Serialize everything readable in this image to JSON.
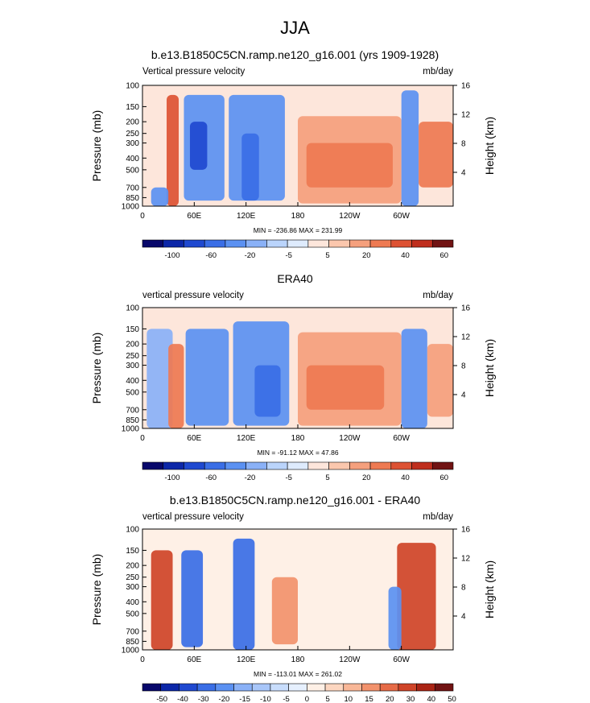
{
  "figure": {
    "title": "JJA"
  },
  "chart_data": [
    {
      "type": "heatmap",
      "title": "b.e13.B1850C5CN.ramp.ne120_g16.001 (yrs 1909-1928)",
      "left_label": "Vertical pressure velocity",
      "right_label": "mb/day",
      "ylabel": "Pressure (mb)",
      "y2label": "Height (km)",
      "x_ticks": [
        "0",
        "60E",
        "120E",
        "180",
        "120W",
        "60W"
      ],
      "x_tick_values": [
        0,
        60,
        120,
        180,
        240,
        300
      ],
      "xlim": [
        0,
        360
      ],
      "y_ticks": [
        "100",
        "150",
        "200",
        "250",
        "300",
        "400",
        "500",
        "700",
        "850",
        "1000"
      ],
      "y_tick_values": [
        100,
        150,
        200,
        250,
        300,
        400,
        500,
        700,
        850,
        1000
      ],
      "ylim": [
        1000,
        100
      ],
      "y_scale": "log",
      "height_ticks": [
        "4",
        "8",
        "12",
        "16"
      ],
      "height_tick_values": [
        4,
        8,
        12,
        16
      ],
      "stats": "MIN = -236.86  MAX = 231.99",
      "colorbar_labels": [
        "-100",
        "-60",
        "-20",
        "-5",
        "5",
        "20",
        "40",
        "60"
      ],
      "colorbar_levels": [
        -100,
        -80,
        -60,
        -40,
        -20,
        -10,
        -5,
        0,
        5,
        10,
        20,
        30,
        40,
        60
      ],
      "colorbar_colors": [
        "#08086b",
        "#0c27a8",
        "#1f49d0",
        "#3a6ee6",
        "#5b91f2",
        "#8ab1f7",
        "#bad4fb",
        "#deebfd",
        "#fde6db",
        "#fbc7ad",
        "#f5a07d",
        "#ee7a52",
        "#dd5233",
        "#bf2e1d",
        "#711313"
      ],
      "features": [
        {
          "x": [
            28,
            42
          ],
          "p": [
            1000,
            120
          ],
          "v": 30
        },
        {
          "x": [
            10,
            30
          ],
          "p": [
            1000,
            700
          ],
          "v": -40
        },
        {
          "x": [
            48,
            95
          ],
          "p": [
            900,
            120
          ],
          "v": -35
        },
        {
          "x": [
            55,
            75
          ],
          "p": [
            500,
            200
          ],
          "v": -80
        },
        {
          "x": [
            100,
            165
          ],
          "p": [
            900,
            120
          ],
          "v": -30
        },
        {
          "x": [
            115,
            135
          ],
          "p": [
            900,
            250
          ],
          "v": -60
        },
        {
          "x": [
            180,
            300
          ],
          "p": [
            950,
            180
          ],
          "v": 18
        },
        {
          "x": [
            190,
            290
          ],
          "p": [
            700,
            300
          ],
          "v": 28
        },
        {
          "x": [
            300,
            320
          ],
          "p": [
            1000,
            110
          ],
          "v": -40
        },
        {
          "x": [
            320,
            360
          ],
          "p": [
            700,
            200
          ],
          "v": 22
        }
      ]
    },
    {
      "type": "heatmap",
      "title": "ERA40",
      "left_label": "vertical pressure velocity",
      "right_label": "mb/day",
      "ylabel": "Pressure (mb)",
      "y2label": "Height (km)",
      "x_ticks": [
        "0",
        "60E",
        "120E",
        "180",
        "120W",
        "60W"
      ],
      "x_tick_values": [
        0,
        60,
        120,
        180,
        240,
        300
      ],
      "xlim": [
        0,
        360
      ],
      "y_ticks": [
        "100",
        "150",
        "200",
        "250",
        "300",
        "400",
        "500",
        "700",
        "850",
        "1000"
      ],
      "y_tick_values": [
        100,
        150,
        200,
        250,
        300,
        400,
        500,
        700,
        850,
        1000
      ],
      "ylim": [
        1000,
        100
      ],
      "y_scale": "log",
      "height_ticks": [
        "4",
        "8",
        "12",
        "16"
      ],
      "height_tick_values": [
        4,
        8,
        12,
        16
      ],
      "stats": "MIN = -91.12  MAX = 47.86",
      "colorbar_labels": [
        "-100",
        "-60",
        "-20",
        "-5",
        "5",
        "20",
        "40",
        "60"
      ],
      "colorbar_levels": [
        -100,
        -80,
        -60,
        -40,
        -20,
        -10,
        -5,
        0,
        5,
        10,
        20,
        30,
        40,
        60
      ],
      "colorbar_colors": [
        "#08086b",
        "#0c27a8",
        "#1f49d0",
        "#3a6ee6",
        "#5b91f2",
        "#8ab1f7",
        "#bad4fb",
        "#deebfd",
        "#fde6db",
        "#fbc7ad",
        "#f5a07d",
        "#ee7a52",
        "#dd5233",
        "#bf2e1d",
        "#711313"
      ],
      "features": [
        {
          "x": [
            5,
            35
          ],
          "p": [
            1000,
            150
          ],
          "v": -20
        },
        {
          "x": [
            30,
            48
          ],
          "p": [
            1000,
            200
          ],
          "v": 25
        },
        {
          "x": [
            50,
            100
          ],
          "p": [
            950,
            150
          ],
          "v": -22
        },
        {
          "x": [
            105,
            170
          ],
          "p": [
            950,
            130
          ],
          "v": -28
        },
        {
          "x": [
            130,
            160
          ],
          "p": [
            800,
            300
          ],
          "v": -45
        },
        {
          "x": [
            180,
            300
          ],
          "p": [
            950,
            160
          ],
          "v": 15
        },
        {
          "x": [
            190,
            280
          ],
          "p": [
            700,
            300
          ],
          "v": 22
        },
        {
          "x": [
            300,
            330
          ],
          "p": [
            1000,
            150
          ],
          "v": -25
        },
        {
          "x": [
            330,
            360
          ],
          "p": [
            800,
            200
          ],
          "v": 12
        }
      ]
    },
    {
      "type": "heatmap",
      "title": "b.e13.B1850C5CN.ramp.ne120_g16.001 - ERA40",
      "left_label": "vertical pressure velocity",
      "right_label": "mb/day",
      "ylabel": "Pressure (mb)",
      "y2label": "Height (km)",
      "x_ticks": [
        "0",
        "60E",
        "120E",
        "180",
        "120W",
        "60W"
      ],
      "x_tick_values": [
        0,
        60,
        120,
        180,
        240,
        300
      ],
      "xlim": [
        0,
        360
      ],
      "y_ticks": [
        "100",
        "150",
        "200",
        "250",
        "300",
        "400",
        "500",
        "700",
        "850",
        "1000"
      ],
      "y_tick_values": [
        100,
        150,
        200,
        250,
        300,
        400,
        500,
        700,
        850,
        1000
      ],
      "ylim": [
        1000,
        100
      ],
      "y_scale": "log",
      "height_ticks": [
        "4",
        "8",
        "12",
        "16"
      ],
      "height_tick_values": [
        4,
        8,
        12,
        16
      ],
      "stats": "MIN = -113.01  MAX = 261.02",
      "colorbar_labels": [
        "-50",
        "-40",
        "-30",
        "-20",
        "-15",
        "-10",
        "-5",
        "0",
        "5",
        "10",
        "15",
        "20",
        "30",
        "40",
        "50"
      ],
      "colorbar_levels": [
        -60,
        -50,
        -40,
        -30,
        -20,
        -15,
        -10,
        -5,
        0,
        5,
        10,
        15,
        20,
        30,
        40,
        50,
        60
      ],
      "colorbar_colors": [
        "#08086b",
        "#0c27a8",
        "#1f49d0",
        "#3a6ee6",
        "#5b91f2",
        "#8ab1f7",
        "#a8c6f9",
        "#c8ddfc",
        "#e6f0fe",
        "#fef0e6",
        "#fcd6c0",
        "#f8b797",
        "#f2926c",
        "#e66b47",
        "#cf4428",
        "#aa2415",
        "#711313"
      ],
      "features": [
        {
          "x": [
            10,
            35
          ],
          "p": [
            1000,
            150
          ],
          "v": 35
        },
        {
          "x": [
            45,
            70
          ],
          "p": [
            950,
            150
          ],
          "v": -40
        },
        {
          "x": [
            105,
            130
          ],
          "p": [
            1000,
            120
          ],
          "v": -35
        },
        {
          "x": [
            150,
            180
          ],
          "p": [
            900,
            250
          ],
          "v": 15
        },
        {
          "x": [
            180,
            240
          ],
          "p": [
            1000,
            200
          ],
          "v": 3
        },
        {
          "x": [
            295,
            340
          ],
          "p": [
            1000,
            130
          ],
          "v": 30
        },
        {
          "x": [
            285,
            300
          ],
          "p": [
            1000,
            300
          ],
          "v": -25
        }
      ]
    }
  ]
}
